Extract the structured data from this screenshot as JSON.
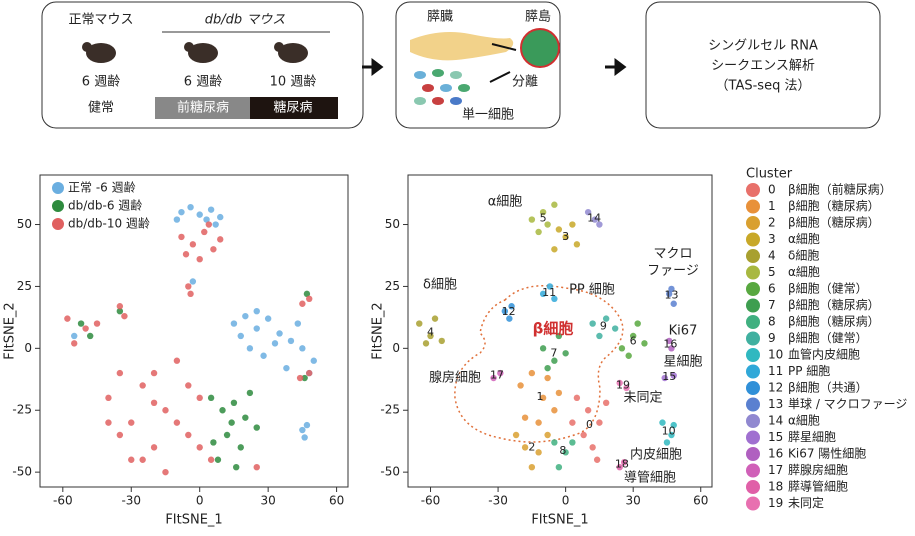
{
  "workflow": {
    "normal_group": "正常マウス",
    "dbdb_group": "db/db マウス",
    "ages": [
      "6 週齢",
      "6 週齢",
      "10 週齢"
    ],
    "states": [
      "健常",
      "前糖尿病",
      "糖尿病"
    ],
    "pancreas": "膵臓",
    "islet": "膵島",
    "isolate": "分離",
    "cells": "単一細胞",
    "analysis": [
      "シングルセル RNA",
      "シークエンス解析",
      "（TAS-seq 法）"
    ]
  },
  "chart_data": [
    {
      "type": "scatter",
      "xlabel": "FItSNE_1",
      "ylabel": "FItSNE_2",
      "xlim": [
        -70,
        65
      ],
      "ylim": [
        -56,
        70
      ],
      "xticks": [
        -60,
        -30,
        0,
        30,
        60
      ],
      "yticks": [
        -50,
        -25,
        0,
        25,
        50
      ],
      "series": [
        {
          "name": "正常 -6 週齢",
          "color": "#6aaee0",
          "x": [
            -8,
            -4,
            0,
            5,
            9,
            -10,
            3,
            7,
            15,
            20,
            25,
            30,
            35,
            40,
            45,
            50,
            22,
            28,
            33,
            38,
            18,
            43,
            25,
            48,
            -55,
            45,
            46,
            47,
            -3
          ],
          "y": [
            55,
            57,
            54,
            56,
            53,
            52,
            52,
            50,
            10,
            13,
            8,
            12,
            6,
            3,
            0,
            -5,
            0,
            -3,
            2,
            -8,
            5,
            10,
            15,
            -10,
            5,
            -33,
            -36,
            -31,
            27
          ]
        },
        {
          "name": "db/db-6 週齢",
          "color": "#2e8b3e",
          "x": [
            5,
            10,
            15,
            20,
            12,
            18,
            8,
            22,
            25,
            14,
            6,
            16,
            -52,
            -48,
            47,
            46,
            -35
          ],
          "y": [
            -20,
            -25,
            -22,
            -28,
            -35,
            -40,
            -45,
            -18,
            -32,
            -30,
            -38,
            -48,
            10,
            5,
            22,
            -12,
            15
          ]
        },
        {
          "name": "db/db-10 週齢",
          "color": "#e06060",
          "x": [
            -8,
            -3,
            2,
            6,
            9,
            -6,
            0,
            4,
            -40,
            -35,
            -30,
            -25,
            -20,
            -15,
            -10,
            -5,
            0,
            5,
            -25,
            -35,
            -15,
            -5,
            -20,
            -30,
            -10,
            -20,
            0,
            -40,
            -58,
            -55,
            -50,
            -45,
            -35,
            -33,
            -5,
            -4,
            48,
            45,
            44,
            48,
            25
          ],
          "y": [
            45,
            42,
            47,
            40,
            44,
            38,
            36,
            50,
            -20,
            -10,
            -30,
            -15,
            -40,
            -25,
            -5,
            -35,
            -20,
            -45,
            -45,
            -35,
            -50,
            -15,
            -10,
            -45,
            -30,
            -22,
            -40,
            -30,
            12,
            2,
            8,
            10,
            17,
            13,
            25,
            22,
            20,
            18,
            -12,
            -10,
            -48
          ]
        }
      ]
    },
    {
      "type": "scatter",
      "xlabel": "FItSNE_1",
      "ylabel": "FItSNE_2",
      "xlim": [
        -70,
        65
      ],
      "ylim": [
        -56,
        70
      ],
      "xticks": [
        -60,
        -30,
        0,
        30,
        60
      ],
      "yticks": [
        -50,
        -25,
        0,
        25,
        50
      ],
      "legend_title": "Cluster",
      "annotations": [
        "α細胞",
        "δ細胞",
        "PP 細胞",
        "マクロ",
        "ファージ",
        "Ki67",
        "星細胞",
        "腺房細胞",
        "未同定",
        "内皮細胞",
        "導管細胞",
        "β細胞"
      ],
      "series": [
        {
          "label": "0",
          "name": "β細胞（前糖尿病）",
          "color": "#e8706a",
          "x": [
            5,
            10,
            15,
            8,
            12,
            18,
            3,
            14
          ],
          "y": [
            -20,
            -25,
            -30,
            -35,
            -40,
            -22,
            -30,
            -45
          ]
        },
        {
          "label": "1",
          "name": "β細胞（糖尿病）",
          "color": "#e8913a",
          "x": [
            -20,
            -15,
            -10,
            -5,
            -18,
            -8,
            -12,
            -3
          ],
          "y": [
            -15,
            -10,
            -20,
            -25,
            -28,
            -12,
            -30,
            -18
          ]
        },
        {
          "label": "2",
          "name": "β細胞（糖尿病）",
          "color": "#d9a030",
          "x": [
            -22,
            -18,
            -12,
            -8,
            -15
          ],
          "y": [
            -35,
            -40,
            -42,
            -35,
            -48
          ]
        },
        {
          "label": "3",
          "name": "α細胞",
          "color": "#c8a828",
          "x": [
            -5,
            0,
            5,
            3,
            -3
          ],
          "y": [
            40,
            45,
            42,
            50,
            48
          ]
        },
        {
          "label": "4",
          "name": "δ細胞",
          "color": "#a8a030",
          "x": [
            -65,
            -60,
            -58,
            -55,
            -62
          ],
          "y": [
            10,
            5,
            12,
            3,
            2
          ]
        },
        {
          "label": "5",
          "name": "α細胞",
          "color": "#a8b840",
          "x": [
            -15,
            -10,
            -5,
            -12,
            -8
          ],
          "y": [
            52,
            55,
            58,
            47,
            50
          ]
        },
        {
          "label": "6",
          "name": "β細胞（健常）",
          "color": "#58a840",
          "x": [
            25,
            30,
            35,
            28,
            32
          ],
          "y": [
            0,
            5,
            2,
            -3,
            10
          ]
        },
        {
          "label": "7",
          "name": "β細胞（糖尿病）",
          "color": "#3e9e50",
          "x": [
            -10,
            -5,
            0,
            -8,
            -3
          ],
          "y": [
            0,
            -5,
            -2,
            -8,
            5
          ]
        },
        {
          "label": "8",
          "name": "β細胞（糖尿病）",
          "color": "#40b080",
          "x": [
            -5,
            0,
            -3,
            3
          ],
          "y": [
            -38,
            -42,
            -48,
            -38
          ]
        },
        {
          "label": "9",
          "name": "β細胞（健常）",
          "color": "#40b0a0",
          "x": [
            12,
            18,
            22,
            15
          ],
          "y": [
            10,
            12,
            8,
            5
          ]
        },
        {
          "label": "10",
          "name": "血管内皮細胞",
          "color": "#30b8c0",
          "x": [
            43,
            47,
            45,
            48
          ],
          "y": [
            -30,
            -35,
            -38,
            -31
          ]
        },
        {
          "label": "11",
          "name": "PP 細胞",
          "color": "#30a8d8",
          "x": [
            -10,
            -7,
            -5
          ],
          "y": [
            22,
            25,
            20
          ]
        },
        {
          "label": "12",
          "name": "β細胞（共通）",
          "color": "#3090d8",
          "x": [
            -27,
            -24,
            -25
          ],
          "y": [
            15,
            17,
            12
          ]
        },
        {
          "label": "13",
          "name": "単球 / マクロファージ",
          "color": "#5a80d0",
          "x": [
            46,
            48,
            47
          ],
          "y": [
            22,
            18,
            24
          ]
        },
        {
          "label": "14",
          "name": "α細胞",
          "color": "#9088d0",
          "x": [
            10,
            13,
            15
          ],
          "y": [
            55,
            52,
            50
          ]
        },
        {
          "label": "15",
          "name": "膵星細胞",
          "color": "#a070d0",
          "x": [
            44,
            48
          ],
          "y": [
            -12,
            -11
          ]
        },
        {
          "label": "16",
          "name": "Ki67 陽性細胞",
          "color": "#b060c0",
          "x": [
            47,
            46
          ],
          "y": [
            0,
            3
          ]
        },
        {
          "label": "17",
          "name": "膵腺房細胞",
          "color": "#d060b8",
          "x": [
            -32,
            -29
          ],
          "y": [
            -12,
            -10
          ]
        },
        {
          "label": "18",
          "name": "膵導管細胞",
          "color": "#e060a8",
          "x": [
            24,
            26
          ],
          "y": [
            -48,
            -46
          ]
        },
        {
          "label": "19",
          "name": "未同定",
          "color": "#e870b0",
          "x": [
            24,
            27
          ],
          "y": [
            -14,
            -16
          ]
        }
      ]
    }
  ]
}
